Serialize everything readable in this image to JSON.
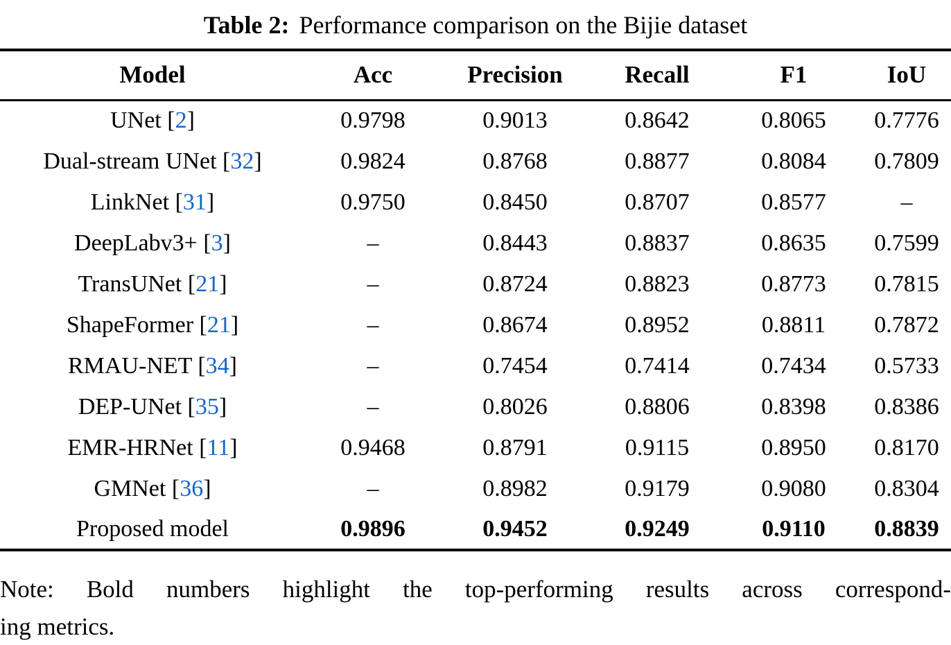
{
  "caption": {
    "label": "Table 2:",
    "text": "Performance comparison on the Bijie dataset"
  },
  "table": {
    "headers": [
      "Model",
      "Acc",
      "Precision",
      "Recall",
      "F1",
      "IoU"
    ],
    "rows": [
      {
        "model": "UNet",
        "cite": "2",
        "bold": false,
        "values": [
          "0.9798",
          "0.9013",
          "0.8642",
          "0.8065",
          "0.7776"
        ]
      },
      {
        "model": "Dual-stream UNet",
        "cite": "32",
        "bold": false,
        "values": [
          "0.9824",
          "0.8768",
          "0.8877",
          "0.8084",
          "0.7809"
        ]
      },
      {
        "model": "LinkNet",
        "cite": "31",
        "bold": false,
        "values": [
          "0.9750",
          "0.8450",
          "0.8707",
          "0.8577",
          "–"
        ]
      },
      {
        "model": "DeepLabv3+",
        "cite": "3",
        "bold": false,
        "values": [
          "–",
          "0.8443",
          "0.8837",
          "0.8635",
          "0.7599"
        ]
      },
      {
        "model": "TransUNet",
        "cite": "21",
        "bold": false,
        "values": [
          "–",
          "0.8724",
          "0.8823",
          "0.8773",
          "0.7815"
        ]
      },
      {
        "model": "ShapeFormer",
        "cite": "21",
        "bold": false,
        "values": [
          "–",
          "0.8674",
          "0.8952",
          "0.8811",
          "0.7872"
        ]
      },
      {
        "model": "RMAU-NET",
        "cite": "34",
        "bold": false,
        "values": [
          "–",
          "0.7454",
          "0.7414",
          "0.7434",
          "0.5733"
        ]
      },
      {
        "model": "DEP-UNet",
        "cite": "35",
        "bold": false,
        "values": [
          "–",
          "0.8026",
          "0.8806",
          "0.8398",
          "0.8386"
        ]
      },
      {
        "model": "EMR-HRNet",
        "cite": "11",
        "bold": false,
        "values": [
          "0.9468",
          "0.8791",
          "0.9115",
          "0.8950",
          "0.8170"
        ]
      },
      {
        "model": "GMNet",
        "cite": "36",
        "bold": false,
        "values": [
          "–",
          "0.8982",
          "0.9179",
          "0.9080",
          "0.8304"
        ]
      },
      {
        "model": "Proposed model",
        "cite": null,
        "bold": true,
        "values": [
          "0.9896",
          "0.9452",
          "0.9249",
          "0.9110",
          "0.8839"
        ]
      }
    ]
  },
  "note": {
    "line1": "Note: Bold numbers highlight the top-performing results across correspond-",
    "line2": "ing metrics."
  },
  "colors": {
    "citation": "#1766C8",
    "text": "#000000",
    "background": "#ffffff"
  }
}
